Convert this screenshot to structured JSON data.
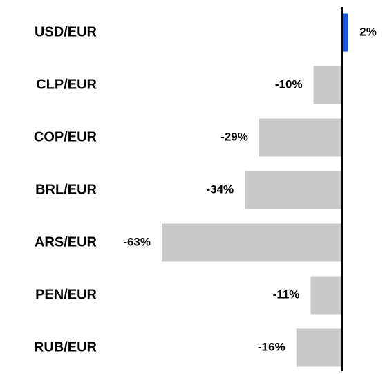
{
  "chart_data": {
    "type": "bar",
    "orientation": "horizontal",
    "categories": [
      "USD/EUR",
      "CLP/EUR",
      "COP/EUR",
      "BRL/EUR",
      "ARS/EUR",
      "PEN/EUR",
      "RUB/EUR"
    ],
    "values": [
      2,
      -10,
      -29,
      -34,
      -63,
      -11,
      -16
    ],
    "value_labels": [
      "2%",
      "-10%",
      "-29%",
      "-34%",
      "-63%",
      "-11%",
      "-16%"
    ],
    "colors": [
      "#1a56db",
      "#c8c8c8",
      "#c8c8c8",
      "#c8c8c8",
      "#c8c8c8",
      "#c8c8c8",
      "#c8c8c8"
    ]
  }
}
